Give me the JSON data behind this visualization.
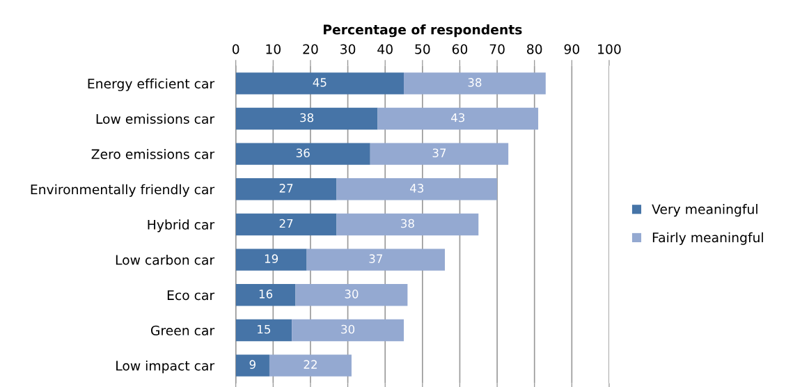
{
  "chart_data": {
    "type": "bar",
    "orientation": "horizontal",
    "stacked": true,
    "xlabel": "Percentage of respondents",
    "categories": [
      "Energy efficient car",
      "Low emissions car",
      "Zero emissions car",
      "Environmentally friendly car",
      "Hybrid car",
      "Low carbon car",
      "Eco car",
      "Green car",
      "Low impact car"
    ],
    "series": [
      {
        "name": "Very meaningful",
        "color": "#4674a7",
        "values": [
          45,
          38,
          36,
          27,
          27,
          19,
          16,
          15,
          9
        ]
      },
      {
        "name": "Fairly meaningful",
        "color": "#94a9d1",
        "values": [
          38,
          43,
          37,
          43,
          38,
          37,
          30,
          30,
          22
        ]
      }
    ],
    "xlim": [
      0,
      100
    ],
    "xticks": [
      0,
      10,
      20,
      30,
      40,
      50,
      60,
      70,
      80,
      90,
      100
    ],
    "grid": "x",
    "legend": "right",
    "data_labels": true
  }
}
